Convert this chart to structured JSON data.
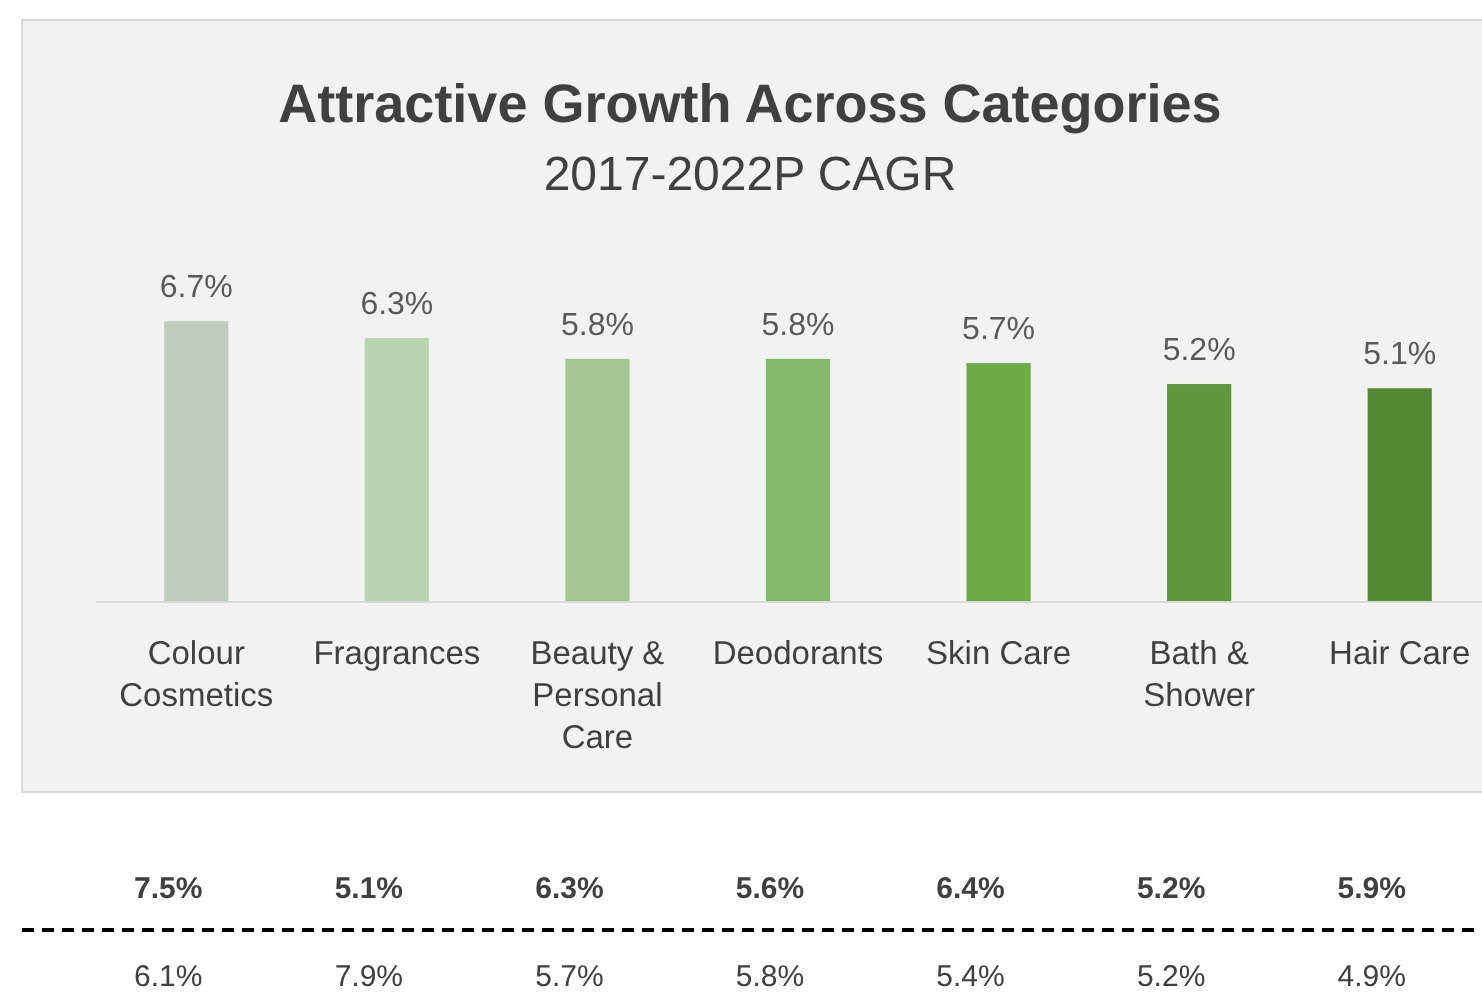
{
  "chart_data": {
    "type": "bar",
    "title": "Attractive Growth Across Categories",
    "subtitle": "2017-2022P CAGR",
    "categories": [
      "Colour Cosmetics",
      "Fragrances",
      "Beauty & Personal Care",
      "Deodorants",
      "Skin Care",
      "Bath & Shower",
      "Hair Care"
    ],
    "values": [
      6.7,
      6.3,
      5.8,
      5.8,
      5.7,
      5.2,
      5.1
    ],
    "colors": [
      "#bfcbbf",
      "#b8d4b0",
      "#a3c590",
      "#84b86a",
      "#6aab45",
      "#5e9a3c",
      "#548a34"
    ],
    "data_labels": true,
    "value_labels": [
      "6.7%",
      "6.3%",
      "5.8%",
      "5.8%",
      "5.7%",
      "5.2%",
      "5.1%"
    ],
    "annotations": [
      "7.5%",
      "5.1%",
      "6.3%",
      "5.6%",
      "6.4%",
      "5.2%",
      "5.9%",
      "6.1%",
      "7.9%",
      "5.7%",
      "5.8%",
      "5.4%",
      "5.2%",
      "4.9%"
    ]
  }
}
